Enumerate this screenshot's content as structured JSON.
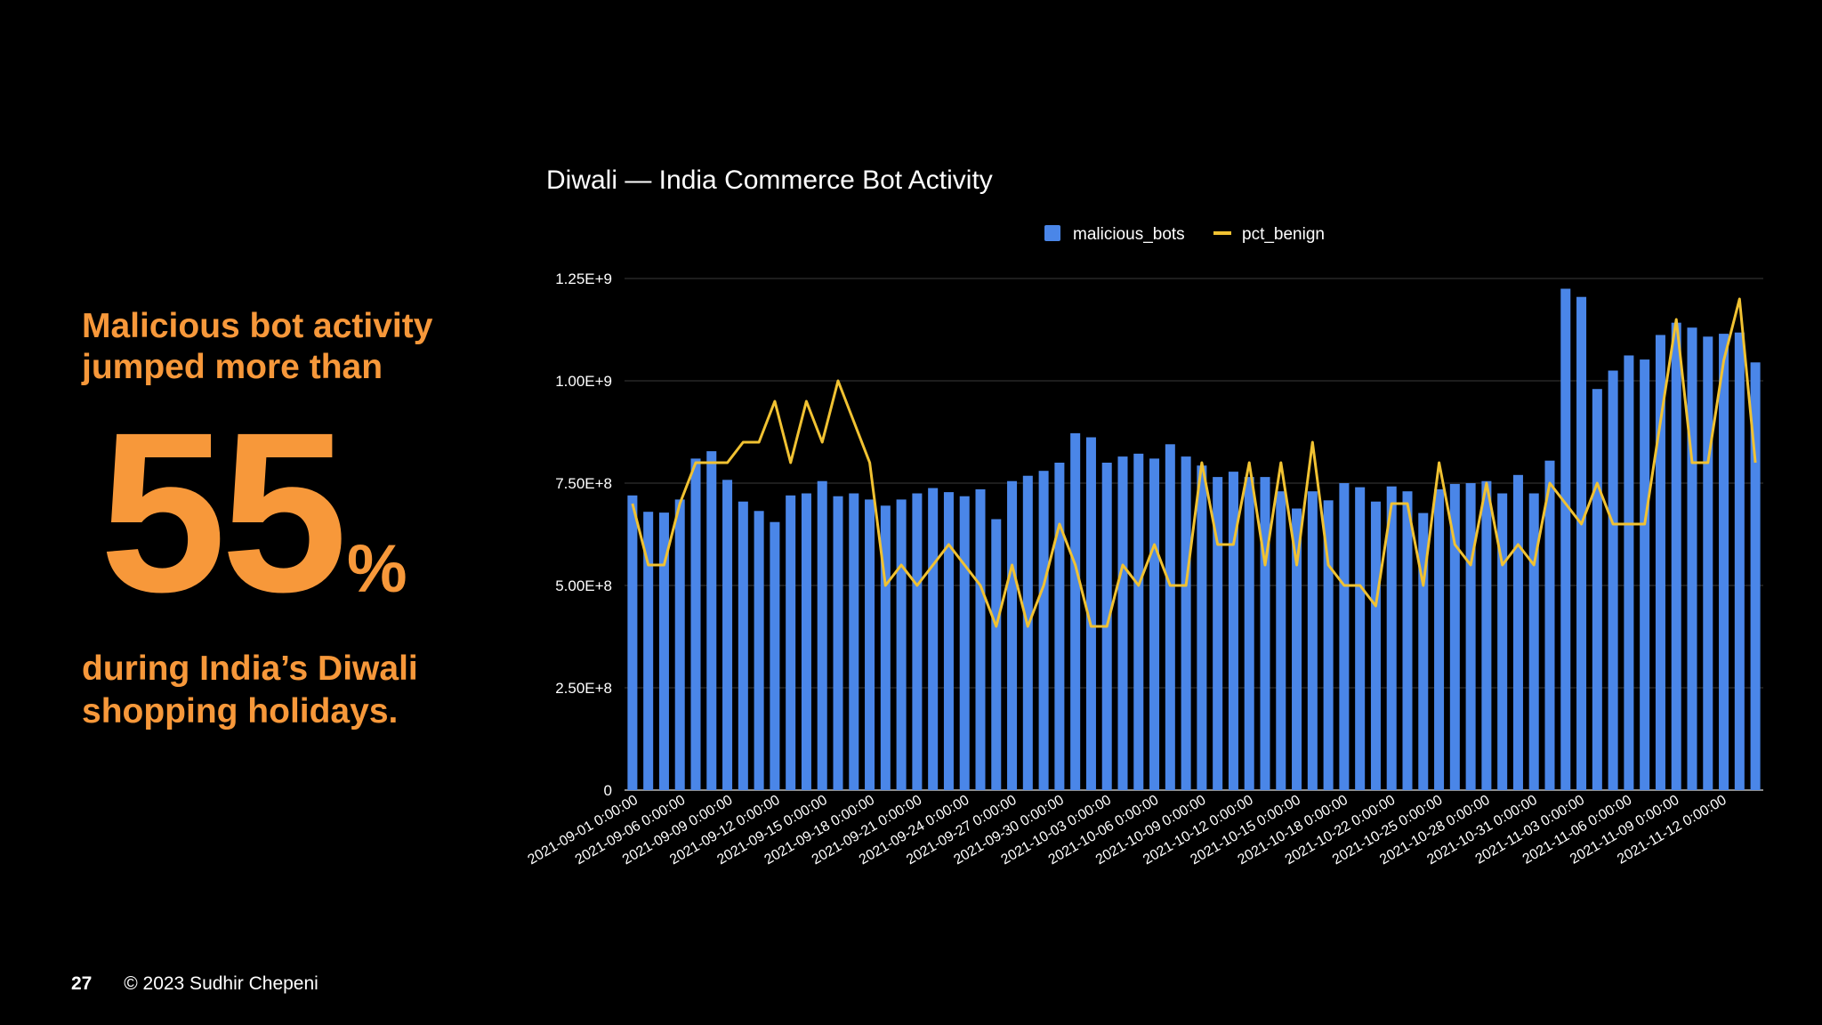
{
  "slide": {
    "headline": "Malicious bot activity jumped more than",
    "big_number": "55",
    "percent_sign": "%",
    "subline": "during India’s Diwali shopping holidays.",
    "page_number": "27",
    "copyright": "© 2023 Sudhir Chepeni"
  },
  "colors": {
    "background": "#000000",
    "accent": "#f7983a",
    "bars": "#4a86e8",
    "line": "#f1c232",
    "grid": "#3a3a3a",
    "text": "#ffffff"
  },
  "chart_data": {
    "type": "bar",
    "title": "Diwali — India Commerce Bot Activity",
    "xlabel": "",
    "ylabel": "",
    "ylim": [
      0,
      1250000000
    ],
    "yticks": [
      0,
      250000000,
      500000000,
      750000000,
      1000000000,
      1250000000
    ],
    "ytick_labels": [
      "0",
      "2.50E+8",
      "5.00E+8",
      "7.50E+8",
      "1.00E+9",
      "1.25E+9"
    ],
    "legend_position": "top-center",
    "grid": true,
    "x_tick_labels": [
      "2021-09-01 0:00:00",
      "2021-09-06 0:00:00",
      "2021-09-09 0:00:00",
      "2021-09-12 0:00:00",
      "2021-09-15 0:00:00",
      "2021-09-18 0:00:00",
      "2021-09-21 0:00:00",
      "2021-09-24 0:00:00",
      "2021-09-27 0:00:00",
      "2021-09-30 0:00:00",
      "2021-10-03 0:00:00",
      "2021-10-06 0:00:00",
      "2021-10-09 0:00:00",
      "2021-10-12 0:00:00",
      "2021-10-15 0:00:00",
      "2021-10-18 0:00:00",
      "2021-10-22 0:00:00",
      "2021-10-25 0:00:00",
      "2021-10-28 0:00:00",
      "2021-10-31 0:00:00",
      "2021-11-03 0:00:00",
      "2021-11-06 0:00:00",
      "2021-11-09 0:00:00",
      "2021-11-12 0:00:00"
    ],
    "series": [
      {
        "name": "malicious_bots",
        "type": "bar",
        "values": [
          720000000,
          680000000,
          678000000,
          710000000,
          810000000,
          828000000,
          758000000,
          705000000,
          682000000,
          655000000,
          720000000,
          725000000,
          755000000,
          718000000,
          725000000,
          710000000,
          695000000,
          710000000,
          725000000,
          738000000,
          728000000,
          718000000,
          735000000,
          662000000,
          755000000,
          768000000,
          780000000,
          800000000,
          872000000,
          862000000,
          800000000,
          815000000,
          822000000,
          810000000,
          845000000,
          815000000,
          793000000,
          765000000,
          778000000,
          765000000,
          765000000,
          730000000,
          688000000,
          730000000,
          708000000,
          750000000,
          740000000,
          705000000,
          742000000,
          730000000,
          677000000,
          735000000,
          748000000,
          750000000,
          755000000,
          725000000,
          770000000,
          725000000,
          805000000,
          1225000000,
          1205000000,
          980000000,
          1025000000,
          1062000000,
          1052000000,
          1112000000,
          1142000000,
          1130000000,
          1108000000,
          1115000000,
          1118000000,
          1045000000
        ]
      },
      {
        "name": "pct_benign",
        "type": "line",
        "values": [
          700000000,
          550000000,
          550000000,
          700000000,
          800000000,
          800000000,
          800000000,
          850000000,
          850000000,
          950000000,
          800000000,
          950000000,
          850000000,
          1000000000,
          900000000,
          800000000,
          500000000,
          550000000,
          500000000,
          550000000,
          600000000,
          550000000,
          500000000,
          400000000,
          550000000,
          400000000,
          500000000,
          650000000,
          550000000,
          400000000,
          400000000,
          550000000,
          500000000,
          600000000,
          500000000,
          500000000,
          800000000,
          600000000,
          600000000,
          800000000,
          550000000,
          800000000,
          550000000,
          850000000,
          550000000,
          500000000,
          500000000,
          450000000,
          700000000,
          700000000,
          500000000,
          800000000,
          600000000,
          550000000,
          750000000,
          550000000,
          600000000,
          550000000,
          750000000,
          700000000,
          650000000,
          750000000,
          650000000,
          650000000,
          650000000,
          900000000,
          1150000000,
          800000000,
          800000000,
          1050000000,
          1200000000,
          800000000
        ]
      }
    ]
  }
}
